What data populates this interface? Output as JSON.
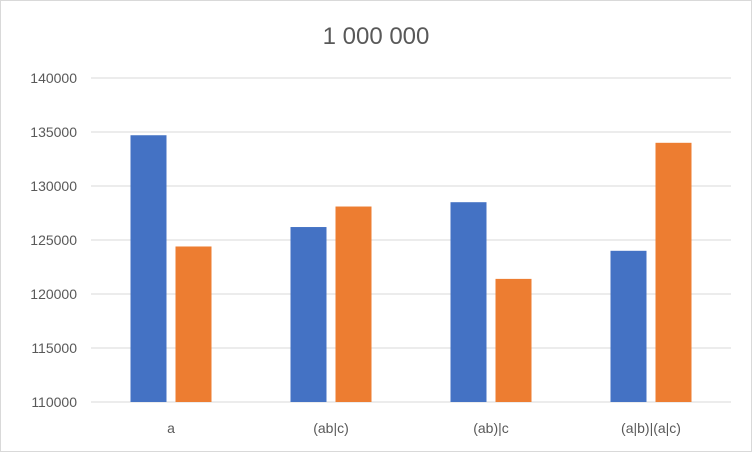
{
  "chart_data": {
    "type": "bar",
    "title": "1 000 000",
    "categories": [
      "a",
      "(ab|c)",
      "(ab)|c",
      "(a|b)|(a|c)"
    ],
    "series": [
      {
        "values": [
          134700,
          126200,
          128500,
          124000
        ],
        "color": "#4472c4"
      },
      {
        "values": [
          124400,
          128100,
          121400,
          134000
        ],
        "color": "#ed7d31"
      }
    ],
    "xlabel": "",
    "ylabel": "",
    "ylim": [
      110000,
      140000
    ],
    "yticks": [
      110000,
      115000,
      120000,
      125000,
      130000,
      135000,
      140000
    ],
    "grid": true,
    "legend": "none"
  }
}
